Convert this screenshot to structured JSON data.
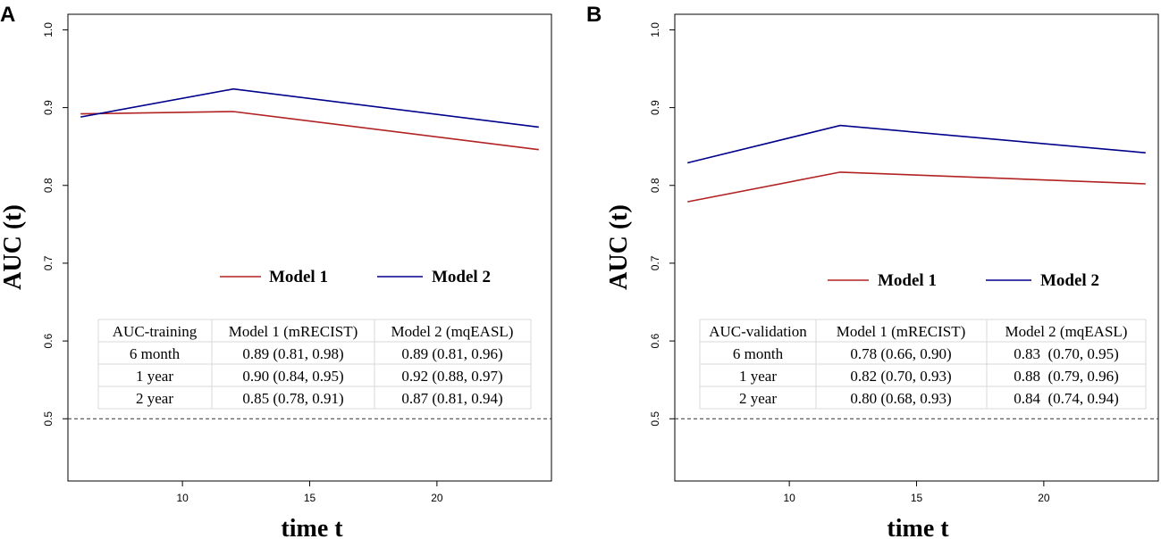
{
  "chart_data": [
    {
      "type": "line",
      "panel_label": "A",
      "x": [
        6,
        12,
        24
      ],
      "series": [
        {
          "name": "Model 1",
          "color": "#b22222",
          "values": [
            0.892,
            0.895,
            0.846
          ]
        },
        {
          "name": "Model 2",
          "color": "#00008b",
          "values": [
            0.888,
            0.924,
            0.875
          ]
        }
      ],
      "reference_line": {
        "y": 0.5,
        "style": "dashed"
      },
      "xlabel": "time t",
      "ylabel": "AUC (t)",
      "xlim": [
        5.5,
        24.5
      ],
      "ylim": [
        0.42,
        1.02
      ],
      "xticks": [
        10,
        15,
        20
      ],
      "yticks": [
        0.5,
        0.6,
        0.7,
        0.8,
        0.9,
        1.0
      ],
      "ytick_labels": [
        "0.5",
        "0.6",
        "0.7",
        "0.8",
        "0.9",
        "1.0"
      ],
      "legend": [
        "Model 1",
        "Model 2"
      ],
      "table": {
        "header": [
          "AUC-training",
          "Model 1 (mRECIST)",
          "Model 2 (mqEASL)"
        ],
        "rows": [
          [
            "6 month",
            "0.89 (0.81, 0.98)",
            "0.89 (0.81, 0.96)"
          ],
          [
            "1 year",
            "0.90 (0.84, 0.95)",
            "0.92 (0.88, 0.97)"
          ],
          [
            "2 year",
            "0.85 (0.78, 0.91)",
            "0.87 (0.81, 0.94)"
          ]
        ]
      }
    },
    {
      "type": "line",
      "panel_label": "B",
      "x": [
        6,
        12,
        24
      ],
      "series": [
        {
          "name": "Model 1",
          "color": "#b22222",
          "values": [
            0.779,
            0.817,
            0.802
          ]
        },
        {
          "name": "Model 2",
          "color": "#00008b",
          "values": [
            0.829,
            0.877,
            0.842
          ]
        }
      ],
      "reference_line": {
        "y": 0.5,
        "style": "dashed"
      },
      "xlabel": "time t",
      "ylabel": "AUC (t)",
      "xlim": [
        5.5,
        24.5
      ],
      "ylim": [
        0.42,
        1.02
      ],
      "xticks": [
        10,
        15,
        20
      ],
      "yticks": [
        0.5,
        0.6,
        0.7,
        0.8,
        0.9,
        1.0
      ],
      "ytick_labels": [
        "0.5",
        "0.6",
        "0.7",
        "0.8",
        "0.9",
        "1.0"
      ],
      "legend": [
        "Model 1",
        "Model 2"
      ],
      "table": {
        "header": [
          "AUC-validation",
          "Model 1 (mRECIST)",
          "Model 2 (mqEASL)"
        ],
        "rows": [
          [
            "6 month",
            "0.78 (0.66, 0.90)",
            "0.83  (0.70, 0.95)"
          ],
          [
            "1 year",
            "0.82 (0.70, 0.93)",
            "0.88  (0.79, 0.96)"
          ],
          [
            "2 year",
            "0.80 (0.68, 0.93)",
            "0.84  (0.74, 0.94)"
          ]
        ]
      }
    }
  ]
}
